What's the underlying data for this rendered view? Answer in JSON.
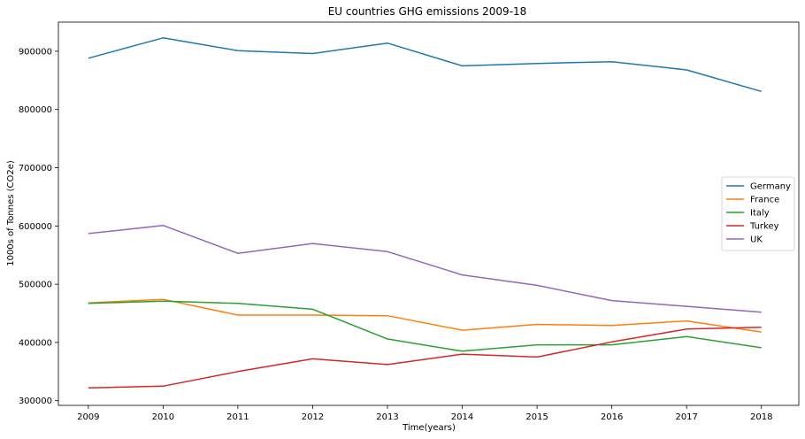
{
  "chart_data": {
    "type": "line",
    "title": "EU countries GHG emissions 2009-18",
    "xlabel": "Time(years)",
    "ylabel": "1000s of Tonnes (CO2e)",
    "x": [
      2009,
      2010,
      2011,
      2012,
      2013,
      2014,
      2015,
      2016,
      2017,
      2018
    ],
    "xlim": [
      2008.6,
      2018.5
    ],
    "ylim": [
      292000,
      950000
    ],
    "yticks": [
      300000,
      400000,
      500000,
      600000,
      700000,
      800000,
      900000
    ],
    "xticks": [
      2009,
      2010,
      2011,
      2012,
      2013,
      2014,
      2015,
      2016,
      2017,
      2018
    ],
    "grid": false,
    "legend_position": "center-right",
    "series": [
      {
        "name": "Germany",
        "color": "#1f77b4",
        "values": [
          888000,
          923000,
          901000,
          896000,
          914000,
          875000,
          879000,
          882000,
          868000,
          831000
        ]
      },
      {
        "name": "France",
        "color": "#ff7f0e",
        "values": [
          468000,
          474000,
          447000,
          447000,
          446000,
          421000,
          431000,
          429000,
          437000,
          418000
        ]
      },
      {
        "name": "Italy",
        "color": "#2ca02c",
        "values": [
          467000,
          471000,
          467000,
          457000,
          406000,
          385000,
          396000,
          396000,
          410000,
          391000
        ]
      },
      {
        "name": "Turkey",
        "color": "#d62728",
        "values": [
          322000,
          325000,
          350000,
          372000,
          362000,
          380000,
          375000,
          401000,
          423000,
          426000
        ]
      },
      {
        "name": "UK",
        "color": "#9467bd",
        "values": [
          587000,
          601000,
          553000,
          570000,
          556000,
          516000,
          498000,
          472000,
          462000,
          452000
        ]
      }
    ]
  }
}
